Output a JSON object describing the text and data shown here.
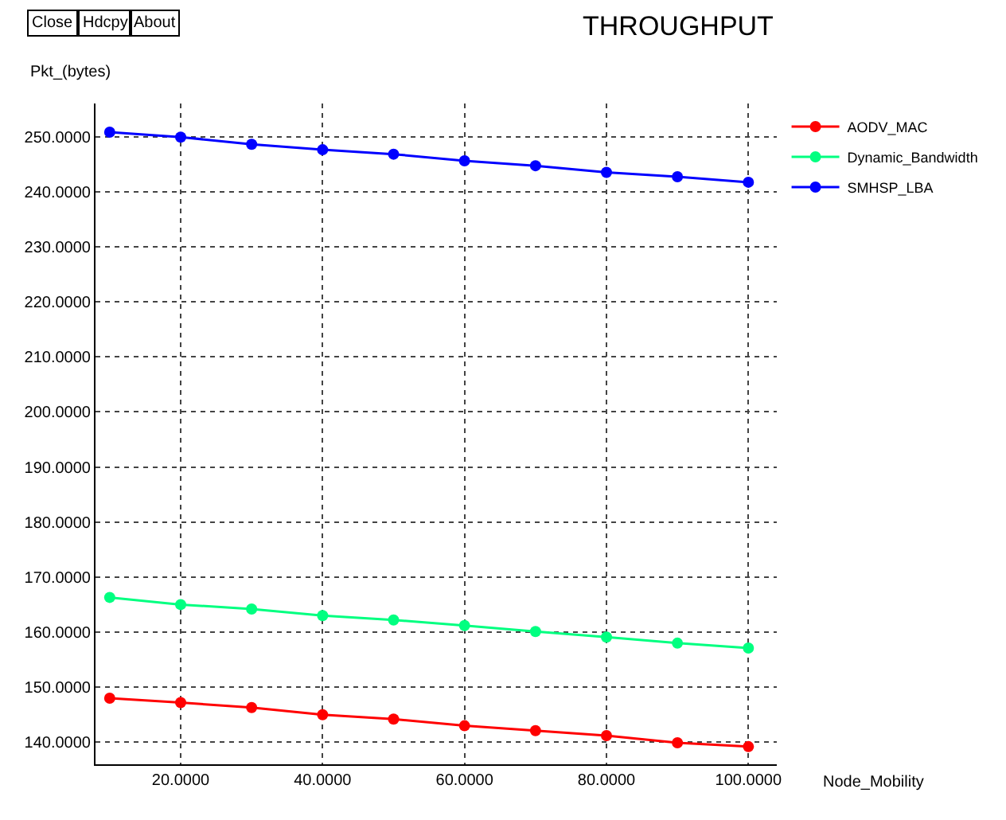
{
  "chart_data": {
    "type": "line",
    "title": "THROUGHPUT",
    "ylabel": "Pkt_(bytes)",
    "xlabel": "Node_Mobility",
    "annotations": [
      "Close",
      "Hdcpy",
      "About"
    ],
    "x": [
      10,
      20,
      30,
      40,
      50,
      60,
      70,
      80,
      90,
      100
    ],
    "series": [
      {
        "name": "AODV_MAC",
        "color": "#ff0000",
        "values": [
          148.0,
          147.2,
          146.3,
          145.0,
          144.2,
          143.0,
          142.1,
          141.2,
          139.9,
          139.2
        ]
      },
      {
        "name": "Dynamic_Bandwidth",
        "color": "#00ff80",
        "values": [
          166.3,
          165.0,
          164.2,
          163.0,
          162.2,
          161.2,
          160.1,
          159.1,
          158.0,
          157.1
        ]
      },
      {
        "name": "SMHSP_LBA",
        "color": "#0000ff",
        "values": [
          250.8,
          249.9,
          248.6,
          247.6,
          246.8,
          245.6,
          244.7,
          243.5,
          242.7,
          241.7
        ]
      }
    ],
    "xlim": [
      8,
      104
    ],
    "xticks": [
      {
        "value": 20,
        "label": "20.0000"
      },
      {
        "value": 40,
        "label": "40.0000"
      },
      {
        "value": 60,
        "label": "60.0000"
      },
      {
        "value": 80,
        "label": "80.0000"
      },
      {
        "value": 100,
        "label": "100.0000"
      }
    ],
    "ylim": [
      136,
      256
    ],
    "yticks": [
      {
        "value": 140,
        "label": "140.0000"
      },
      {
        "value": 150,
        "label": "150.0000"
      },
      {
        "value": 160,
        "label": "160.0000"
      },
      {
        "value": 170,
        "label": "170.0000"
      },
      {
        "value": 180,
        "label": "180.0000"
      },
      {
        "value": 190,
        "label": "190.0000"
      },
      {
        "value": 200,
        "label": "200.0000"
      },
      {
        "value": 210,
        "label": "210.0000"
      },
      {
        "value": 220,
        "label": "220.0000"
      },
      {
        "value": 230,
        "label": "230.0000"
      },
      {
        "value": 240,
        "label": "240.0000"
      },
      {
        "value": 250,
        "label": "250.0000"
      }
    ],
    "grid": true,
    "legend": "top right",
    "marker": "circle",
    "line_style": "solid"
  }
}
